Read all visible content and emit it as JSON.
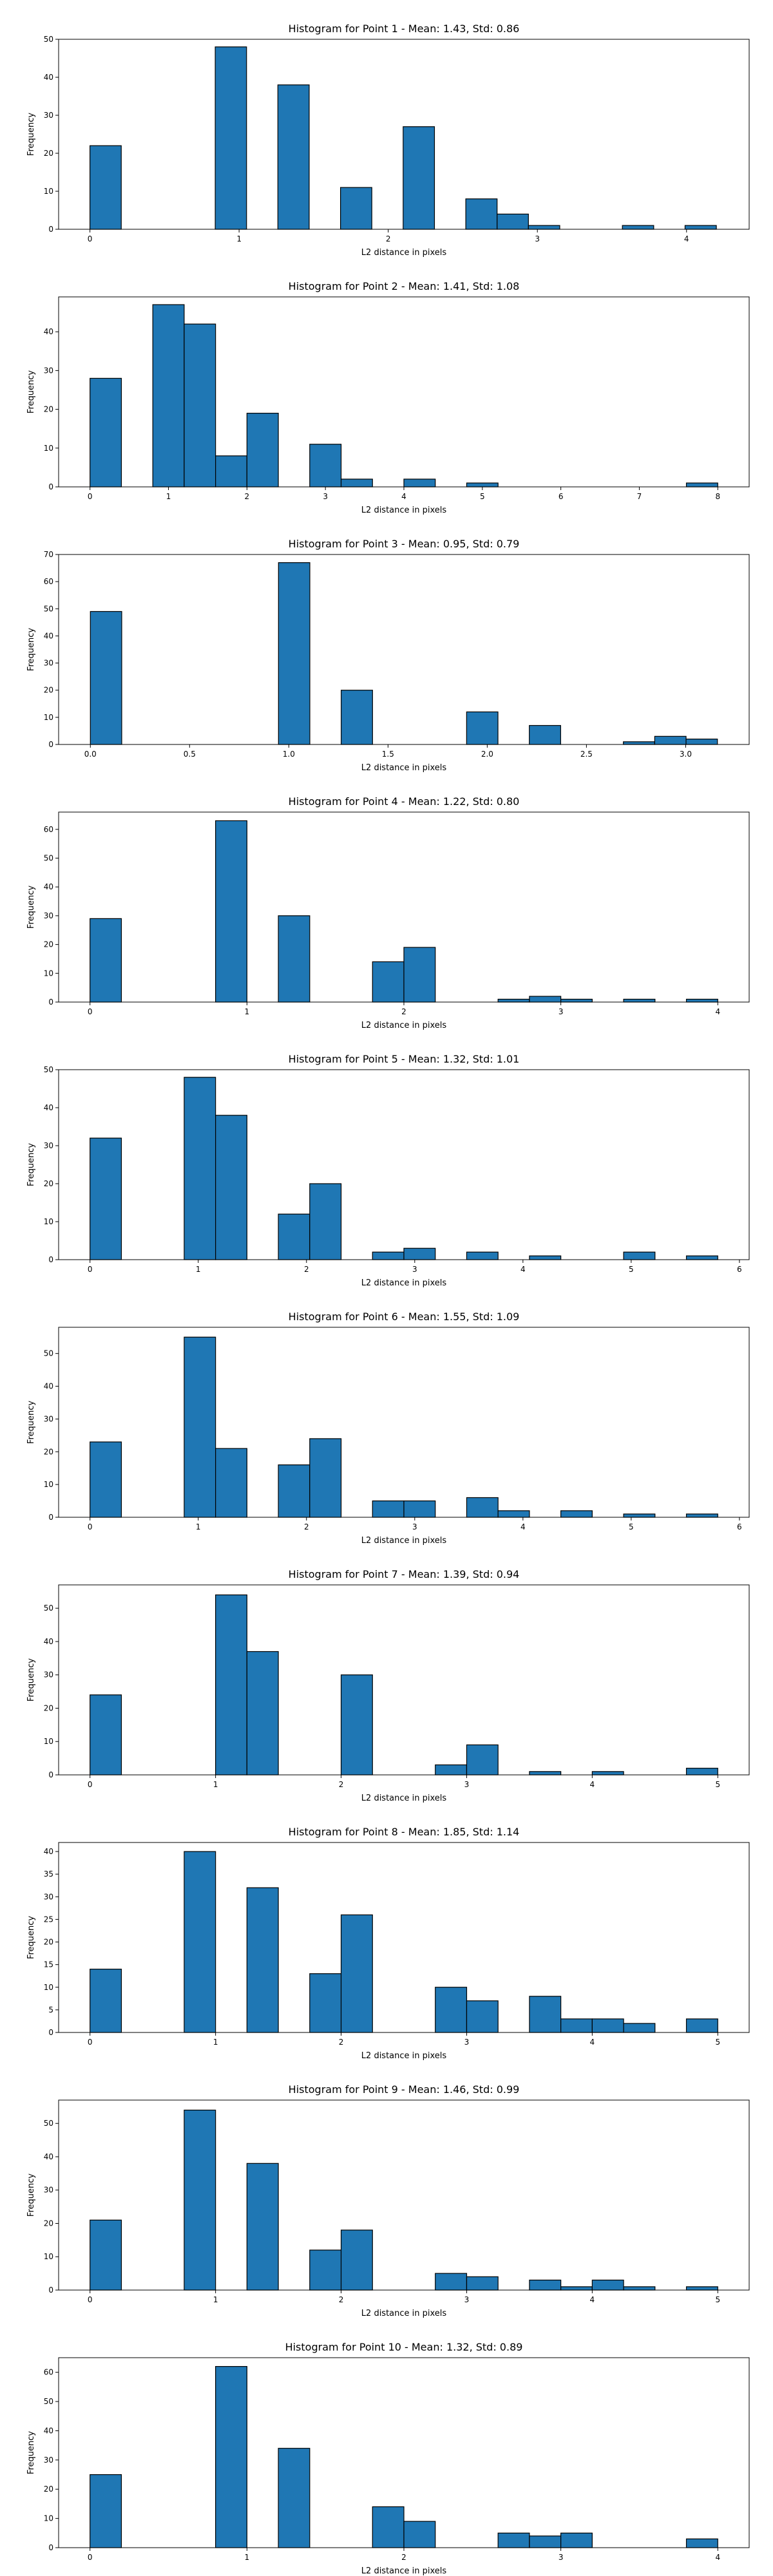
{
  "chart_data": [
    {
      "type": "bar",
      "title": "Histogram for Point 1 - Mean: 1.43, Std: 0.86",
      "xlabel": "L2 distance in pixels",
      "ylabel": "Frequency",
      "xlim": [
        -0.21,
        4.42
      ],
      "ylim": [
        0,
        50
      ],
      "xticks": [
        "0",
        "1",
        "2",
        "3",
        "4"
      ],
      "xtick_values": [
        0,
        1,
        2,
        3,
        4
      ],
      "yticks": [
        "0",
        "10",
        "20",
        "30",
        "40",
        "50"
      ],
      "ytick_values": [
        0,
        10,
        20,
        30,
        40,
        50
      ],
      "bin_range": [
        0,
        4.2
      ],
      "values": [
        22,
        0,
        0,
        0,
        48,
        0,
        38,
        0,
        11,
        0,
        27,
        0,
        8,
        4,
        1,
        0,
        0,
        1,
        0,
        1
      ]
    },
    {
      "type": "bar",
      "title": "Histogram for Point 2 - Mean: 1.41, Std: 1.08",
      "xlabel": "L2 distance in pixels",
      "ylabel": "Frequency",
      "xlim": [
        -0.4,
        8.4
      ],
      "ylim": [
        0,
        49
      ],
      "xticks": [
        "0",
        "1",
        "2",
        "3",
        "4",
        "5",
        "6",
        "7",
        "8"
      ],
      "xtick_values": [
        0,
        1,
        2,
        3,
        4,
        5,
        6,
        7,
        8
      ],
      "yticks": [
        "0",
        "10",
        "20",
        "30",
        "40"
      ],
      "ytick_values": [
        0,
        10,
        20,
        30,
        40
      ],
      "bin_range": [
        0,
        8
      ],
      "values": [
        28,
        0,
        47,
        42,
        8,
        19,
        0,
        11,
        2,
        0,
        2,
        0,
        1,
        0,
        0,
        0,
        0,
        0,
        0,
        1
      ]
    },
    {
      "type": "bar",
      "title": "Histogram for Point 3 - Mean: 0.95, Std: 0.79",
      "xlabel": "L2 distance in pixels",
      "ylabel": "Frequency",
      "xlim": [
        -0.16,
        3.32
      ],
      "ylim": [
        0,
        70
      ],
      "xticks": [
        "0.0",
        "0.5",
        "1.0",
        "1.5",
        "2.0",
        "2.5",
        "3.0"
      ],
      "xtick_values": [
        0,
        0.5,
        1,
        1.5,
        2,
        2.5,
        3
      ],
      "yticks": [
        "0",
        "10",
        "20",
        "30",
        "40",
        "50",
        "60",
        "70"
      ],
      "ytick_values": [
        0,
        10,
        20,
        30,
        40,
        50,
        60,
        70
      ],
      "bin_range": [
        0,
        3.16
      ],
      "values": [
        49,
        0,
        0,
        0,
        0,
        0,
        67,
        0,
        20,
        0,
        0,
        0,
        12,
        0,
        7,
        0,
        0,
        1,
        3,
        2
      ]
    },
    {
      "type": "bar",
      "title": "Histogram for Point 4 - Mean: 1.22, Std: 0.80",
      "xlabel": "L2 distance in pixels",
      "ylabel": "Frequency",
      "xlim": [
        -0.2,
        4.2
      ],
      "ylim": [
        0,
        66
      ],
      "xticks": [
        "0",
        "1",
        "2",
        "3",
        "4"
      ],
      "xtick_values": [
        0,
        1,
        2,
        3,
        4
      ],
      "yticks": [
        "0",
        "10",
        "20",
        "30",
        "40",
        "50",
        "60"
      ],
      "ytick_values": [
        0,
        10,
        20,
        30,
        40,
        50,
        60
      ],
      "bin_range": [
        0,
        4
      ],
      "values": [
        29,
        0,
        0,
        0,
        63,
        0,
        30,
        0,
        0,
        14,
        19,
        0,
        0,
        1,
        2,
        1,
        0,
        1,
        0,
        1
      ]
    },
    {
      "type": "bar",
      "title": "Histogram for Point 5 - Mean: 1.32, Std: 1.01",
      "xlabel": "L2 distance in pixels",
      "ylabel": "Frequency",
      "xlim": [
        -0.29,
        6.09
      ],
      "ylim": [
        0,
        50
      ],
      "xticks": [
        "0",
        "1",
        "2",
        "3",
        "4",
        "5",
        "6"
      ],
      "xtick_values": [
        0,
        1,
        2,
        3,
        4,
        5,
        6
      ],
      "yticks": [
        "0",
        "10",
        "20",
        "30",
        "40",
        "50"
      ],
      "ytick_values": [
        0,
        10,
        20,
        30,
        40,
        50
      ],
      "bin_range": [
        0,
        5.8
      ],
      "values": [
        32,
        0,
        0,
        48,
        38,
        0,
        12,
        20,
        0,
        2,
        3,
        0,
        2,
        0,
        1,
        0,
        0,
        2,
        0,
        1
      ]
    },
    {
      "type": "bar",
      "title": "Histogram for Point 6 - Mean: 1.55, Std: 1.09",
      "xlabel": "L2 distance in pixels",
      "ylabel": "Frequency",
      "xlim": [
        -0.29,
        6.09
      ],
      "ylim": [
        0,
        58
      ],
      "xticks": [
        "0",
        "1",
        "2",
        "3",
        "4",
        "5",
        "6"
      ],
      "xtick_values": [
        0,
        1,
        2,
        3,
        4,
        5,
        6
      ],
      "yticks": [
        "0",
        "10",
        "20",
        "30",
        "40",
        "50"
      ],
      "ytick_values": [
        0,
        10,
        20,
        30,
        40,
        50
      ],
      "bin_range": [
        0,
        5.8
      ],
      "values": [
        23,
        0,
        0,
        55,
        21,
        0,
        16,
        24,
        0,
        5,
        5,
        0,
        6,
        2,
        0,
        2,
        0,
        1,
        0,
        1
      ]
    },
    {
      "type": "bar",
      "title": "Histogram for Point 7 - Mean: 1.39, Std: 0.94",
      "xlabel": "L2 distance in pixels",
      "ylabel": "Frequency",
      "xlim": [
        -0.25,
        5.25
      ],
      "ylim": [
        0,
        57
      ],
      "xticks": [
        "0",
        "1",
        "2",
        "3",
        "4",
        "5"
      ],
      "xtick_values": [
        0,
        1,
        2,
        3,
        4,
        5
      ],
      "yticks": [
        "0",
        "10",
        "20",
        "30",
        "40",
        "50"
      ],
      "ytick_values": [
        0,
        10,
        20,
        30,
        40,
        50
      ],
      "bin_range": [
        0,
        5
      ],
      "values": [
        24,
        0,
        0,
        0,
        54,
        37,
        0,
        0,
        30,
        0,
        0,
        3,
        9,
        0,
        1,
        0,
        1,
        0,
        0,
        2
      ]
    },
    {
      "type": "bar",
      "title": "Histogram for Point 8 - Mean: 1.85, Std: 1.14",
      "xlabel": "L2 distance in pixels",
      "ylabel": "Frequency",
      "xlim": [
        -0.25,
        5.25
      ],
      "ylim": [
        0,
        42
      ],
      "xticks": [
        "0",
        "1",
        "2",
        "3",
        "4",
        "5"
      ],
      "xtick_values": [
        0,
        1,
        2,
        3,
        4,
        5
      ],
      "yticks": [
        "0",
        "5",
        "10",
        "15",
        "20",
        "25",
        "30",
        "35",
        "40"
      ],
      "ytick_values": [
        0,
        5,
        10,
        15,
        20,
        25,
        30,
        35,
        40
      ],
      "bin_range": [
        0,
        5
      ],
      "values": [
        14,
        0,
        0,
        40,
        0,
        32,
        0,
        13,
        26,
        0,
        0,
        10,
        7,
        0,
        8,
        3,
        3,
        2,
        0,
        3
      ]
    },
    {
      "type": "bar",
      "title": "Histogram for Point 9 - Mean: 1.46, Std: 0.99",
      "xlabel": "L2 distance in pixels",
      "ylabel": "Frequency",
      "xlim": [
        -0.25,
        5.25
      ],
      "ylim": [
        0,
        57
      ],
      "xticks": [
        "0",
        "1",
        "2",
        "3",
        "4",
        "5"
      ],
      "xtick_values": [
        0,
        1,
        2,
        3,
        4,
        5
      ],
      "yticks": [
        "0",
        "10",
        "20",
        "30",
        "40",
        "50"
      ],
      "ytick_values": [
        0,
        10,
        20,
        30,
        40,
        50
      ],
      "bin_range": [
        0,
        5
      ],
      "values": [
        21,
        0,
        0,
        54,
        0,
        38,
        0,
        12,
        18,
        0,
        0,
        5,
        4,
        0,
        3,
        1,
        3,
        1,
        0,
        1
      ]
    },
    {
      "type": "bar",
      "title": "Histogram for Point 10 - Mean: 1.32, Std: 0.89",
      "xlabel": "L2 distance in pixels",
      "ylabel": "Frequency",
      "xlim": [
        -0.2,
        4.2
      ],
      "ylim": [
        0,
        65
      ],
      "xticks": [
        "0",
        "1",
        "2",
        "3",
        "4"
      ],
      "xtick_values": [
        0,
        1,
        2,
        3,
        4
      ],
      "yticks": [
        "0",
        "10",
        "20",
        "30",
        "40",
        "50",
        "60"
      ],
      "ytick_values": [
        0,
        10,
        20,
        30,
        40,
        50,
        60
      ],
      "bin_range": [
        0,
        4
      ],
      "values": [
        25,
        0,
        0,
        0,
        62,
        0,
        34,
        0,
        0,
        14,
        9,
        0,
        0,
        5,
        4,
        5,
        0,
        0,
        0,
        3
      ]
    }
  ]
}
